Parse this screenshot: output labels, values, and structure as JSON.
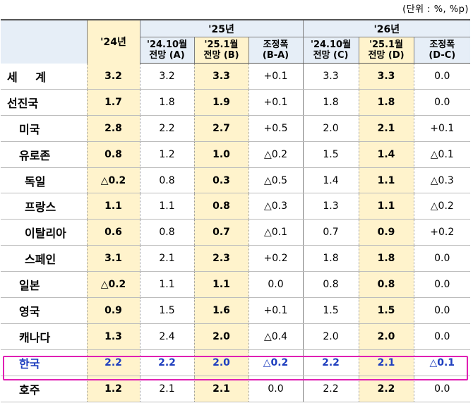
{
  "unit": "(단위 : %, %p)",
  "header": {
    "col_2024": "'24년",
    "group_2025": "'25년",
    "group_2026": "'26년",
    "sub": [
      {
        "line1": "'24.10월",
        "line2": "전망 (A)"
      },
      {
        "line1": "'25.1월",
        "line2": "전망 (B)"
      },
      {
        "line1": "조정폭",
        "line2": "(B-A)"
      },
      {
        "line1": "'24.10월",
        "line2": "전망 (C)"
      },
      {
        "line1": "'25.1월",
        "line2": "전망 (D)"
      },
      {
        "line1": "조정폭",
        "line2": "(D-C)"
      }
    ]
  },
  "rows": [
    {
      "label": "세 계",
      "indent": 0,
      "wide": true,
      "values": [
        "3.2",
        "3.2",
        "3.3",
        "+0.1",
        "3.3",
        "3.3",
        "0.0"
      ]
    },
    {
      "label": "선진국",
      "indent": 0,
      "values": [
        "1.7",
        "1.8",
        "1.9",
        "+0.1",
        "1.8",
        "1.8",
        "0.0"
      ]
    },
    {
      "label": "미국",
      "indent": 1,
      "values": [
        "2.8",
        "2.2",
        "2.7",
        "+0.5",
        "2.0",
        "2.1",
        "+0.1"
      ]
    },
    {
      "label": "유로존",
      "indent": 1,
      "values": [
        "0.8",
        "1.2",
        "1.0",
        "△0.2",
        "1.5",
        "1.4",
        "△0.1"
      ]
    },
    {
      "label": "독일",
      "indent": 2,
      "values": [
        "△0.2",
        "0.8",
        "0.3",
        "△0.5",
        "1.4",
        "1.1",
        "△0.3"
      ]
    },
    {
      "label": "프랑스",
      "indent": 2,
      "values": [
        "1.1",
        "1.1",
        "0.8",
        "△0.3",
        "1.3",
        "1.1",
        "△0.2"
      ]
    },
    {
      "label": "이탈리아",
      "indent": 2,
      "values": [
        "0.6",
        "0.8",
        "0.7",
        "△0.1",
        "0.7",
        "0.9",
        "+0.2"
      ]
    },
    {
      "label": "스페인",
      "indent": 2,
      "values": [
        "3.1",
        "2.1",
        "2.3",
        "+0.2",
        "1.8",
        "1.8",
        "0.0"
      ]
    },
    {
      "label": "일본",
      "indent": 1,
      "values": [
        "△0.2",
        "1.1",
        "1.1",
        "0.0",
        "0.8",
        "0.8",
        "0.0"
      ]
    },
    {
      "label": "영국",
      "indent": 1,
      "values": [
        "0.9",
        "1.5",
        "1.6",
        "+0.1",
        "1.5",
        "1.5",
        "0.0"
      ]
    },
    {
      "label": "캐나다",
      "indent": 1,
      "values": [
        "1.3",
        "2.4",
        "2.0",
        "△0.4",
        "2.0",
        "2.0",
        "0.0"
      ]
    },
    {
      "label": "한국",
      "indent": 1,
      "highlight": true,
      "values": [
        "2.2",
        "2.2",
        "2.0",
        "△0.2",
        "2.2",
        "2.1",
        "△0.1"
      ]
    },
    {
      "label": "호주",
      "indent": 1,
      "values": [
        "1.2",
        "2.1",
        "2.1",
        "0.0",
        "2.2",
        "2.2",
        "0.0"
      ]
    }
  ],
  "colors": {
    "header_bg": "#e6eef7",
    "highlight_col_bg": "#fff3cc",
    "korea_text": "#1f3fbf",
    "korea_box": "#e020b4"
  }
}
